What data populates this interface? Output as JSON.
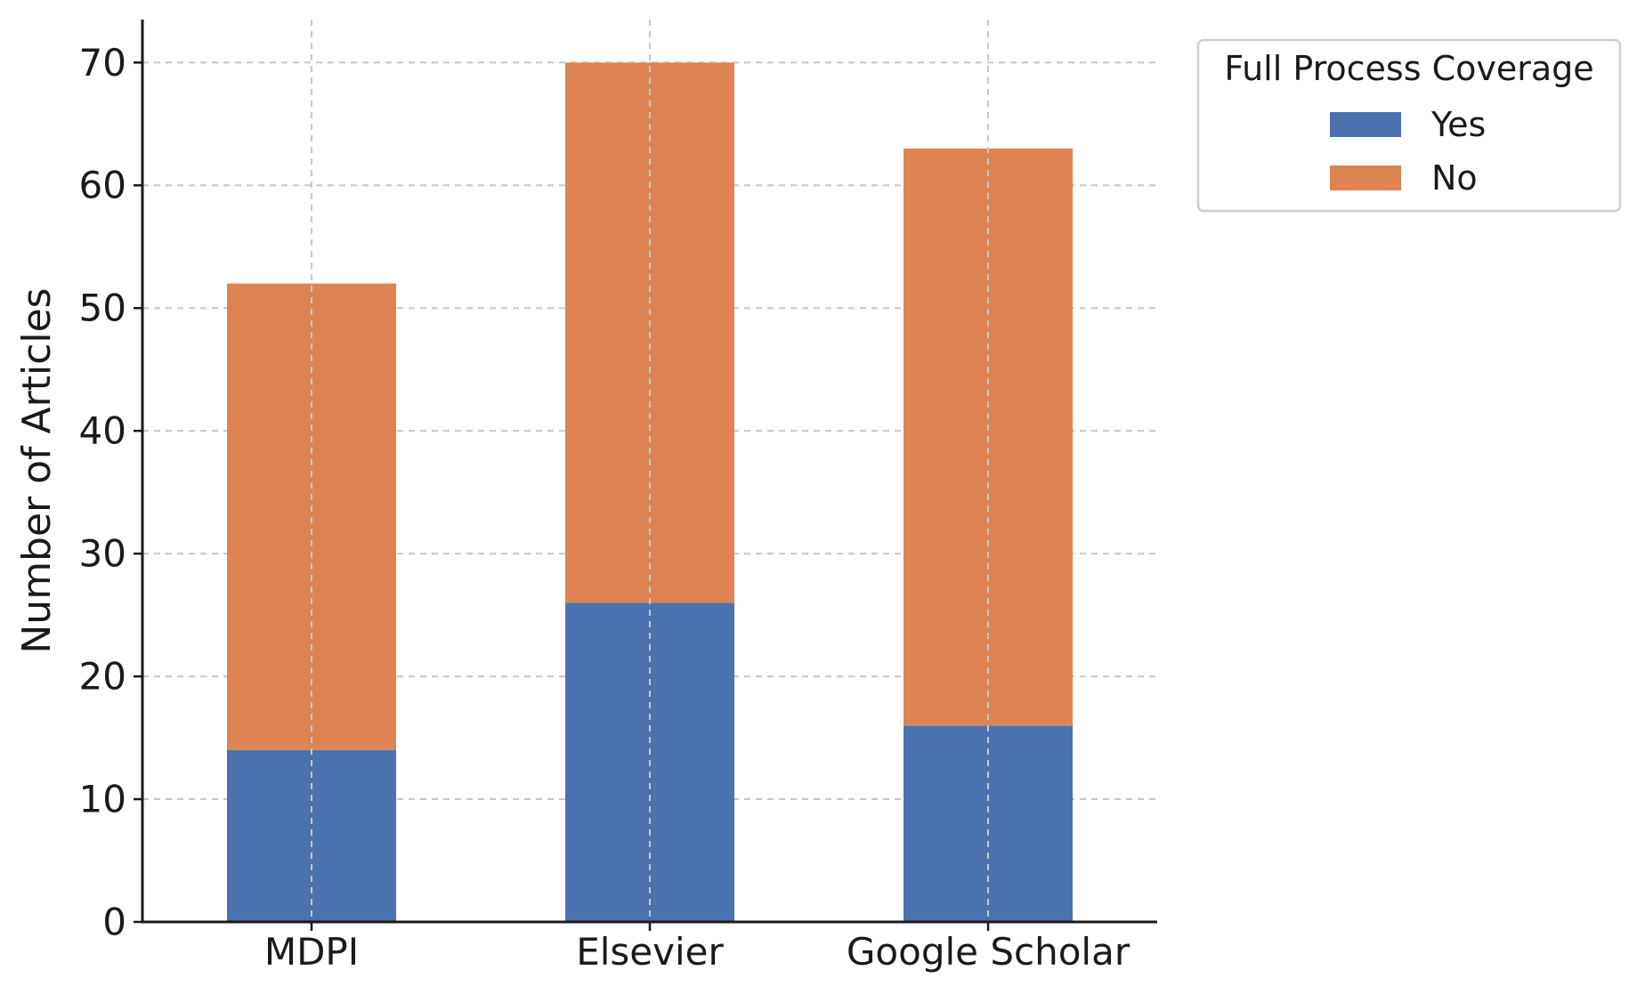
{
  "chart_data": {
    "type": "bar",
    "stacked": true,
    "categories": [
      "MDPI",
      "Elsevier",
      "Google Scholar"
    ],
    "series": [
      {
        "name": "Yes",
        "values": [
          14,
          26,
          16
        ],
        "color": "#4c72b0"
      },
      {
        "name": "No",
        "values": [
          38,
          44,
          47
        ],
        "color": "#dd8452"
      }
    ],
    "totals": [
      52,
      70,
      63
    ],
    "title": "",
    "xlabel": "",
    "ylabel": "Number of Articles",
    "ylim": [
      0,
      73.5
    ],
    "yticks": [
      0,
      10,
      20,
      30,
      40,
      50,
      60,
      70
    ],
    "grid": true,
    "legend": {
      "title": "Full Process Coverage",
      "placement": "outside-top-right",
      "entries": [
        "Yes",
        "No"
      ]
    }
  }
}
